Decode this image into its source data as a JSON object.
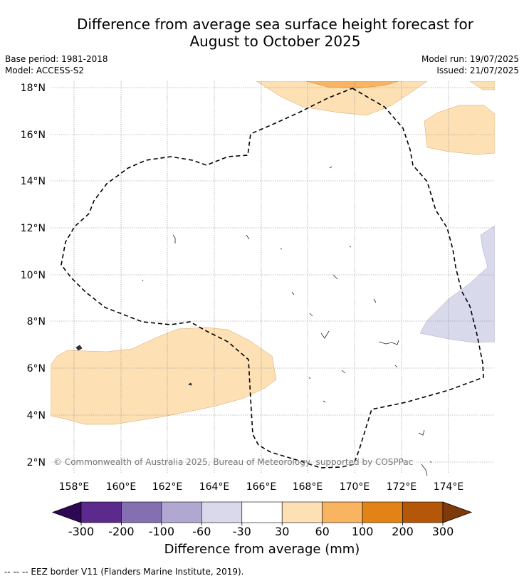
{
  "title_line1": "Difference from average sea surface height forecast for",
  "title_line2": "August to October 2025",
  "base_period": "Base period: 1981-2018",
  "model": "Model: ACCESS-S2",
  "model_run": "Model run: 19/07/2025",
  "issued": "Issued: 21/07/2025",
  "copyright": "© Commonwealth of Australia 2025, Bureau of Meteorology, supported by COSPPac",
  "lat_labels": [
    "18°N",
    "16°N",
    "14°N",
    "12°N",
    "10°N",
    "8°N",
    "6°N",
    "4°N",
    "2°N"
  ],
  "lon_labels": [
    "158°E",
    "160°E",
    "162°E",
    "164°E",
    "166°E",
    "168°E",
    "170°E",
    "172°E",
    "174°E"
  ],
  "colorbar": {
    "title": "Difference from average (mm)",
    "tick_labels": [
      "-300",
      "-200",
      "-100",
      "-60",
      "-30",
      "30",
      "60",
      "100",
      "200",
      "300"
    ],
    "colors": [
      "#2e0854",
      "#5b2a8c",
      "#8470b0",
      "#b1a8d2",
      "#d9d9ec",
      "#ffffff",
      "#fde0b4",
      "#f9b462",
      "#e38316",
      "#b55709",
      "#7f3a0a"
    ]
  },
  "footer": "--  --  -- EEZ border V11 (Flanders Marine Institute, 2019).",
  "colors": {
    "pos_light": "#fde0b4",
    "pos_mid": "#f9b462",
    "neg_light": "#d9d9ec",
    "grid": "#888888",
    "eez": "#000000"
  }
}
